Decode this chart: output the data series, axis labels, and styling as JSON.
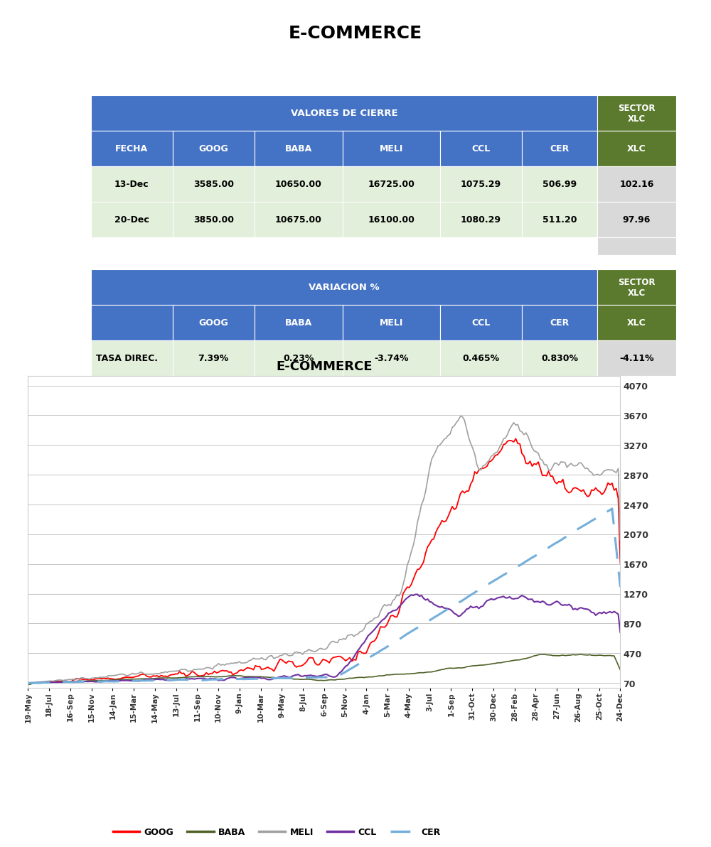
{
  "title": "E-COMMERCE",
  "table1_title": "VALORES DE CIERRE",
  "table1_rows": [
    [
      "13-Dec",
      "3585.00",
      "10650.00",
      "16725.00",
      "1075.29",
      "506.99",
      "102.16"
    ],
    [
      "20-Dec",
      "3850.00",
      "10675.00",
      "16100.00",
      "1080.29",
      "511.20",
      "97.96"
    ]
  ],
  "table2_title": "VARIACION %",
  "table2_rows": [
    [
      "TASA DIREC.",
      "7.39%",
      "0.23%",
      "-3.74%",
      "0.465%",
      "0.830%",
      "-4.11%"
    ]
  ],
  "blue_header": "#4472C4",
  "green_header": "#5B7A2E",
  "light_green_row": "#E2EFDA",
  "light_gray_row": "#DCE6F1",
  "xlc_gray": "#D9D9D9",
  "chart_title": "E-COMMERCE",
  "yticks": [
    70,
    470,
    870,
    1270,
    1670,
    2070,
    2470,
    2870,
    3270,
    3670,
    4070
  ],
  "xtick_labels": [
    "19-May",
    "18-Jul",
    "16-Sep",
    "15-Nov",
    "14-Jan",
    "15-Mar",
    "14-May",
    "13-Jul",
    "11-Sep",
    "10-Nov",
    "9-Jan",
    "10-Mar",
    "9-May",
    "8-Jul",
    "6-Sep",
    "5-Nov",
    "4-Jan",
    "5-Mar",
    "4-May",
    "3-Jul",
    "1-Sep",
    "31-Oct",
    "30-Dec",
    "28-Feb",
    "28-Apr",
    "27-Jun",
    "26-Aug",
    "25-Oct",
    "24-Dec"
  ],
  "line_colors": {
    "GOOG": "#FF0000",
    "BABA": "#4F6228",
    "MELI": "#A0A0A0",
    "CCL": "#7030A0",
    "CER": "#74AFDB"
  }
}
